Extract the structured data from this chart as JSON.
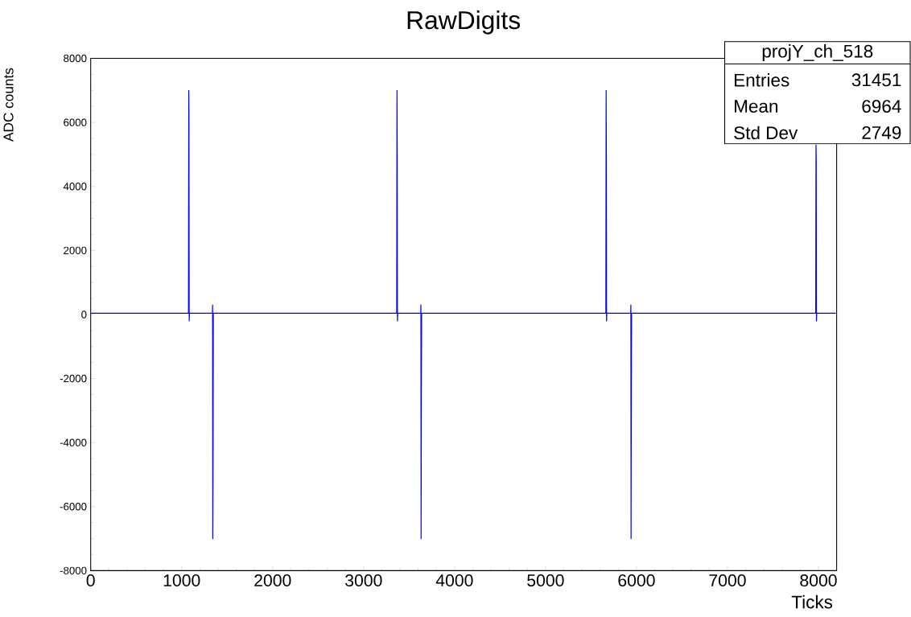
{
  "chart_data": {
    "type": "line",
    "title": "RawDigits",
    "xlabel": "Ticks",
    "ylabel": "ADC counts",
    "annotations": [
      "projY_ch_518",
      "Entries",
      "31451",
      "Mean",
      "6964",
      "Std Dev",
      "2749"
    ],
    "x": [
      0,
      1075,
      1078,
      1080,
      1083,
      1086,
      1338,
      1340,
      1342,
      1345,
      1348,
      3364,
      3367,
      3370,
      3372,
      3375,
      3628,
      3630,
      3632,
      3635,
      3638,
      5663,
      5666,
      5669,
      5671,
      5674,
      5936,
      5938,
      5940,
      5943,
      5946,
      7970,
      7973,
      7976,
      7978,
      7981,
      8192
    ],
    "series": [
      {
        "color": "#0000ff",
        "values": [
          40,
          40,
          7000,
          6400,
          -200,
          40,
          40,
          300,
          -7000,
          -4600,
          40,
          40,
          7000,
          4800,
          -200,
          40,
          40,
          300,
          -7000,
          -2800,
          40,
          40,
          7000,
          4800,
          -200,
          40,
          40,
          300,
          -7000,
          -2800,
          40,
          40,
          5300,
          4800,
          -200,
          40,
          40
        ]
      }
    ],
    "xlim": [
      0,
      8200
    ],
    "ylim": [
      -8000,
      8000
    ],
    "xticks": [
      0,
      1000,
      2000,
      3000,
      4000,
      5000,
      6000,
      7000,
      8000
    ],
    "yticks": [
      -8000,
      -6000,
      -4000,
      -2000,
      0,
      2000,
      4000,
      6000,
      8000
    ],
    "grid": false,
    "marker": "none",
    "line_style": "solid"
  }
}
